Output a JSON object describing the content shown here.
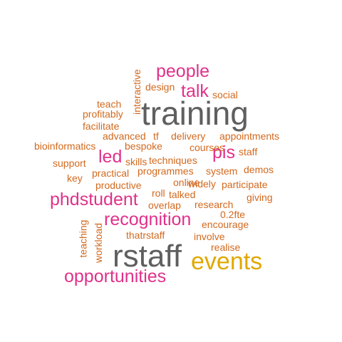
{
  "colors": {
    "gray": "#5f5f5f",
    "pink": "#e0318a",
    "orange": "#d2691e",
    "gold": "#e0a800"
  },
  "words": [
    {
      "text": "training",
      "color": "gray"
    },
    {
      "text": "rstaff",
      "color": "gray"
    },
    {
      "text": "events",
      "color": "gold"
    },
    {
      "text": "people",
      "color": "pink"
    },
    {
      "text": "talk",
      "color": "pink"
    },
    {
      "text": "pis",
      "color": "pink"
    },
    {
      "text": "led",
      "color": "pink"
    },
    {
      "text": "phdstudent",
      "color": "pink"
    },
    {
      "text": "recognition",
      "color": "pink"
    },
    {
      "text": "opportunities",
      "color": "pink"
    },
    {
      "text": "design",
      "color": "orange"
    },
    {
      "text": "interactive",
      "color": "orange"
    },
    {
      "text": "social",
      "color": "orange"
    },
    {
      "text": "teach",
      "color": "orange"
    },
    {
      "text": "profitably",
      "color": "orange"
    },
    {
      "text": "facilitate",
      "color": "orange"
    },
    {
      "text": "advanced",
      "color": "orange"
    },
    {
      "text": "tf",
      "color": "orange"
    },
    {
      "text": "delivery",
      "color": "orange"
    },
    {
      "text": "appointments",
      "color": "orange"
    },
    {
      "text": "bioinformatics",
      "color": "orange"
    },
    {
      "text": "bespoke",
      "color": "orange"
    },
    {
      "text": "courses",
      "color": "orange"
    },
    {
      "text": "staff",
      "color": "orange"
    },
    {
      "text": "support",
      "color": "orange"
    },
    {
      "text": "skills",
      "color": "orange"
    },
    {
      "text": "techniques",
      "color": "orange"
    },
    {
      "text": "key",
      "color": "orange"
    },
    {
      "text": "practical",
      "color": "orange"
    },
    {
      "text": "programmes",
      "color": "orange"
    },
    {
      "text": "system",
      "color": "orange"
    },
    {
      "text": "demos",
      "color": "orange"
    },
    {
      "text": "productive",
      "color": "orange"
    },
    {
      "text": "online",
      "color": "orange"
    },
    {
      "text": "widely",
      "color": "orange"
    },
    {
      "text": "participate",
      "color": "orange"
    },
    {
      "text": "roll",
      "color": "orange"
    },
    {
      "text": "talked",
      "color": "orange"
    },
    {
      "text": "giving",
      "color": "orange"
    },
    {
      "text": "overlap",
      "color": "orange"
    },
    {
      "text": "research",
      "color": "orange"
    },
    {
      "text": "0.2fte",
      "color": "orange"
    },
    {
      "text": "encourage",
      "color": "orange"
    },
    {
      "text": "teaching",
      "color": "orange"
    },
    {
      "text": "workload",
      "color": "orange"
    },
    {
      "text": "thatrstaff",
      "color": "orange"
    },
    {
      "text": "involve",
      "color": "orange"
    },
    {
      "text": "realise",
      "color": "orange"
    }
  ]
}
